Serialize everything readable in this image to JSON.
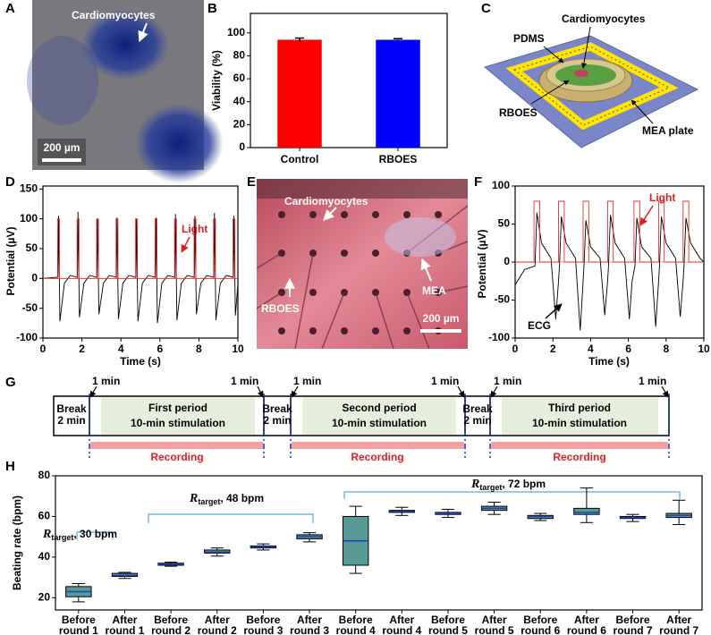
{
  "panel_labels": [
    "A",
    "B",
    "C",
    "D",
    "E",
    "F",
    "G",
    "H"
  ],
  "panel_a": {
    "label": "Cardiomyocytes",
    "scale_bar": "200 µm"
  },
  "panel_c": {
    "labels": [
      "Cardiomyocytes",
      "PDMS",
      "RBOES",
      "MEA plate"
    ]
  },
  "panel_e": {
    "labels": [
      "Cardiomyocytes",
      "RBOES",
      "MEA"
    ],
    "scale_bar": "200 µm"
  },
  "panel_g": {
    "breaks": [
      [
        "Break",
        "2 min"
      ],
      [
        "Break",
        "2 min"
      ],
      [
        "Break",
        "2 min"
      ]
    ],
    "periods": [
      [
        "First period",
        "10-min stimulation"
      ],
      [
        "Second period",
        "10-min stimulation"
      ],
      [
        "Third period",
        "10-min stimulation"
      ]
    ],
    "markers": [
      "1 min",
      "1 min",
      "1 min",
      "1 min",
      "1 min",
      "1 min"
    ],
    "recording": [
      "Recording",
      "Recording",
      "Recording"
    ]
  },
  "chart_data": [
    {
      "type": "bar",
      "categories": [
        "Control",
        "RBOES"
      ],
      "values": [
        94,
        94
      ],
      "errors": [
        1.5,
        1
      ],
      "colors": [
        "#ff0000",
        "#0000ff"
      ],
      "ylabel": "Viability (%)",
      "ylim": [
        0,
        117
      ],
      "yticks": [
        0,
        20,
        40,
        60,
        80,
        100
      ]
    },
    {
      "type": "line",
      "xlabel": "Time (s)",
      "ylabel": "Potential (µV)",
      "annotations": [
        "Light"
      ],
      "xlim": [
        0,
        10
      ],
      "xticks": [
        0,
        2,
        4,
        6,
        8,
        10
      ],
      "ylim": [
        -100,
        155
      ],
      "yticks": [
        -100,
        -50,
        0,
        50,
        100,
        150
      ],
      "series": [
        {
          "color": "#000000",
          "x": [
            0,
            0.77,
            0.8,
            0.87,
            1.1,
            1.4,
            1.77,
            1.8,
            1.87,
            2.1,
            2.4,
            2.77,
            2.8,
            2.87,
            3.1,
            3.4,
            3.77,
            3.8,
            3.87,
            4.1,
            4.4,
            4.77,
            4.8,
            4.87,
            5.1,
            5.4,
            5.77,
            5.8,
            5.87,
            6.1,
            6.4,
            6.77,
            6.8,
            6.87,
            7.1,
            7.4,
            7.77,
            7.8,
            7.87,
            8.1,
            8.4,
            8.77,
            8.8,
            8.87,
            9.1,
            9.4,
            9.77,
            9.8,
            9.87,
            10
          ],
          "values": [
            0,
            2,
            105,
            -72,
            -8,
            5,
            2,
            112,
            -65,
            -8,
            5,
            2,
            100,
            -60,
            -8,
            5,
            2,
            102,
            -68,
            -8,
            5,
            2,
            100,
            -72,
            -8,
            5,
            2,
            102,
            -75,
            -8,
            5,
            2,
            108,
            -70,
            -8,
            5,
            2,
            105,
            -60,
            -8,
            5,
            2,
            110,
            -70,
            -8,
            5,
            2,
            105,
            -62,
            -10
          ]
        },
        {
          "color": "#e03030",
          "x": [
            0,
            0.75,
            0.75,
            0.85,
            0.85,
            1.75,
            1.75,
            1.85,
            1.85,
            2.75,
            2.75,
            2.85,
            2.85,
            3.75,
            3.75,
            3.85,
            3.85,
            4.75,
            4.75,
            4.85,
            4.85,
            5.75,
            5.75,
            5.85,
            5.85,
            6.75,
            6.75,
            6.85,
            6.85,
            7.75,
            7.75,
            7.85,
            7.85,
            8.75,
            8.75,
            8.85,
            8.85,
            9.75,
            9.75,
            9.85,
            9.85,
            10
          ],
          "values": [
            0,
            0,
            100,
            100,
            0,
            0,
            100,
            100,
            0,
            0,
            100,
            100,
            0,
            0,
            100,
            100,
            0,
            0,
            100,
            100,
            0,
            0,
            100,
            100,
            0,
            0,
            100,
            100,
            0,
            0,
            100,
            100,
            0,
            0,
            100,
            100,
            0,
            0,
            100,
            100,
            0,
            0
          ]
        }
      ]
    },
    {
      "type": "line",
      "xlabel": "Time (s)",
      "ylabel": "Potential (µV)",
      "annotations": [
        "Light",
        "ECG"
      ],
      "xlim": [
        0,
        10
      ],
      "xticks": [
        0,
        2,
        4,
        6,
        8,
        10
      ],
      "ylim": [
        -100,
        100
      ],
      "yticks": [
        -100,
        -50,
        0,
        50,
        100
      ],
      "series": [
        {
          "color": "#000000",
          "x": [
            0,
            0.5,
            1.05,
            1.15,
            1.4,
            1.9,
            2.15,
            2.3,
            2.35,
            2.45,
            2.7,
            3.2,
            3.45,
            3.6,
            3.65,
            3.75,
            4.0,
            4.5,
            4.75,
            4.9,
            4.95,
            5.05,
            5.3,
            5.8,
            6.05,
            6.2,
            6.35,
            6.45,
            6.7,
            7.2,
            7.45,
            7.6,
            7.65,
            7.75,
            8.0,
            8.5,
            8.75,
            8.9,
            8.95,
            9.05,
            9.3,
            9.8,
            10
          ],
          "values": [
            -30,
            -10,
            -5,
            65,
            25,
            5,
            -75,
            -25,
            -5,
            60,
            25,
            5,
            -90,
            -25,
            -5,
            55,
            20,
            5,
            -70,
            -25,
            -5,
            62,
            25,
            5,
            -75,
            -25,
            -5,
            58,
            20,
            5,
            -85,
            -25,
            -5,
            60,
            25,
            5,
            -72,
            -25,
            -5,
            58,
            25,
            5,
            0
          ]
        },
        {
          "color": "#e03030",
          "x": [
            0,
            1.0,
            1.0,
            1.3,
            1.3,
            2.3,
            2.3,
            2.6,
            2.6,
            3.6,
            3.6,
            3.9,
            3.9,
            4.9,
            4.9,
            5.2,
            5.2,
            6.3,
            6.3,
            6.6,
            6.6,
            7.6,
            7.6,
            7.9,
            7.9,
            8.9,
            8.9,
            9.2,
            9.2,
            10
          ],
          "values": [
            0,
            0,
            80,
            80,
            0,
            0,
            80,
            80,
            0,
            0,
            80,
            80,
            0,
            0,
            80,
            80,
            0,
            0,
            80,
            80,
            0,
            0,
            80,
            80,
            0,
            0,
            80,
            80,
            0,
            0
          ]
        }
      ]
    },
    {
      "type": "box",
      "ylabel": "Beating rate (bpm)",
      "ylim": [
        14,
        80
      ],
      "yticks": [
        20,
        40,
        60,
        80
      ],
      "color": "#5a9a96",
      "median_color": "#1f3fbf",
      "annotations": [
        {
          "symbol": "R",
          "subscript": "target",
          "text": ", 30 bpm"
        },
        {
          "symbol": "R",
          "subscript": "target",
          "text": ", 48 bpm"
        },
        {
          "symbol": "R",
          "subscript": "target",
          "text": ", 72 bpm"
        }
      ],
      "categories": [
        [
          "Before",
          "round 1"
        ],
        [
          "After",
          "round 1"
        ],
        [
          "Before",
          "round 2"
        ],
        [
          "After",
          "round 2"
        ],
        [
          "Before",
          "round 3"
        ],
        [
          "After",
          "round 3"
        ],
        [
          "Before",
          "round 4"
        ],
        [
          "After",
          "round 4"
        ],
        [
          "Before",
          "round 5"
        ],
        [
          "After",
          "round 5"
        ],
        [
          "Before",
          "round 6"
        ],
        [
          "After",
          "round 6"
        ],
        [
          "Before",
          "round 7"
        ],
        [
          "After",
          "round 7"
        ]
      ],
      "boxes": [
        {
          "min": 18,
          "q1": 20.5,
          "median": 23,
          "q3": 25.5,
          "max": 27
        },
        {
          "min": 29.5,
          "q1": 30.5,
          "median": 31,
          "q3": 32,
          "max": 32.5
        },
        {
          "min": 35.5,
          "q1": 36,
          "median": 36.5,
          "q3": 37,
          "max": 37.5
        },
        {
          "min": 40.5,
          "q1": 42,
          "median": 42.5,
          "q3": 43.5,
          "max": 44.5
        },
        {
          "min": 43.5,
          "q1": 44.5,
          "median": 45,
          "q3": 45.5,
          "max": 46.5
        },
        {
          "min": 47.5,
          "q1": 49,
          "median": 50,
          "q3": 51,
          "max": 52
        },
        {
          "min": 32,
          "q1": 36,
          "median": 48,
          "q3": 60,
          "max": 65
        },
        {
          "min": 60.5,
          "q1": 62,
          "median": 62.5,
          "q3": 63,
          "max": 64.5
        },
        {
          "min": 59.5,
          "q1": 61,
          "median": 61.5,
          "q3": 62,
          "max": 63.5
        },
        {
          "min": 61,
          "q1": 63,
          "median": 64,
          "q3": 65,
          "max": 67
        },
        {
          "min": 58,
          "q1": 59,
          "median": 60,
          "q3": 60.5,
          "max": 61.5
        },
        {
          "min": 57,
          "q1": 61,
          "median": 62,
          "q3": 64,
          "max": 74
        },
        {
          "min": 57.5,
          "q1": 59,
          "median": 59.5,
          "q3": 60,
          "max": 61
        },
        {
          "min": 56,
          "q1": 59.5,
          "median": 60.5,
          "q3": 61.5,
          "max": 68
        }
      ]
    }
  ]
}
